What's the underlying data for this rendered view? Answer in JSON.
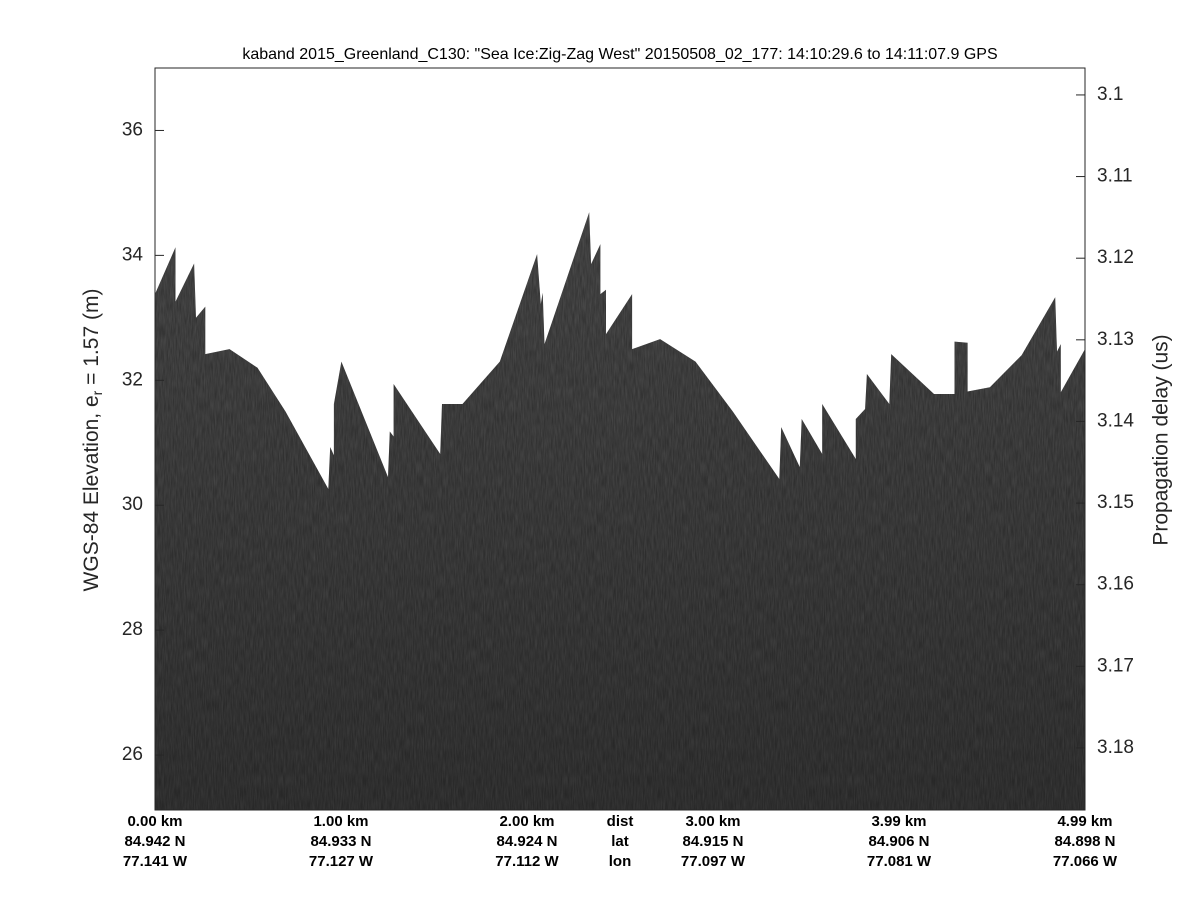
{
  "chart_data": {
    "type": "echogram",
    "title": "kaband 2015_Greenland_C130: \"Sea Ice:Zig-Zag West\"  20150508_02_177: 14:10:29.6 to 14:11:07.9 GPS",
    "ylabel": "WGS-84 Elevation, e",
    "ylabel_sub": "r",
    "ylabel_end": " = 1.57 (m)",
    "y2label": "Propagation delay (us)",
    "xlim": [
      0,
      4.99
    ],
    "ylim": [
      25.12,
      37.0
    ],
    "yticks": [
      26,
      28,
      30,
      32,
      34,
      36
    ],
    "y2lim": [
      3.0967,
      3.1876
    ],
    "y2_reversed": true,
    "y2ticks": [
      3.1,
      3.11,
      3.12,
      3.13,
      3.14,
      3.15,
      3.16,
      3.17,
      3.18
    ],
    "color": "#3b3b3b",
    "x_row_names": [
      "dist",
      "lat",
      "lon"
    ],
    "x_rows": [
      [
        "0.00 km",
        "1.00 km",
        "2.00 km",
        "3.00 km",
        "3.99 km",
        "4.99 km"
      ],
      [
        "84.942 N",
        "84.933 N",
        "84.924 N",
        "84.915 N",
        "84.906 N",
        "84.898 N"
      ],
      [
        "77.141 W",
        "77.127 W",
        "77.112 W",
        "77.097 W",
        "77.081 W",
        "77.066 W"
      ]
    ],
    "surface": {
      "x": [
        0,
        0.11,
        0.11,
        0.21,
        0.22,
        0.27,
        0.27,
        0.4,
        0.55,
        0.7,
        0.93,
        0.94,
        0.96,
        0.96,
        1.0,
        1.25,
        1.26,
        1.28,
        1.28,
        1.53,
        1.54,
        1.65,
        1.85,
        2.05,
        2.07,
        2.08,
        2.09,
        2.33,
        2.34,
        2.39,
        2.39,
        2.42,
        2.42,
        2.56,
        2.56,
        2.71,
        2.9,
        3.1,
        3.35,
        3.36,
        3.46,
        3.47,
        3.58,
        3.58,
        3.76,
        3.76,
        3.81,
        3.82,
        3.94,
        3.95,
        4.18,
        4.29,
        4.29,
        4.36,
        4.36,
        4.48,
        4.65,
        4.83,
        4.84,
        4.86,
        4.86,
        4.99
      ],
      "values": [
        33.38,
        34.13,
        33.26,
        33.87,
        33.0,
        33.18,
        32.42,
        32.5,
        32.2,
        31.5,
        30.26,
        30.93,
        30.8,
        31.62,
        32.3,
        30.45,
        31.18,
        31.1,
        31.94,
        30.82,
        31.62,
        31.62,
        32.3,
        34.02,
        33.22,
        33.4,
        32.58,
        34.69,
        33.86,
        34.18,
        33.38,
        33.45,
        32.74,
        33.38,
        32.5,
        32.66,
        32.3,
        31.5,
        30.42,
        31.25,
        30.61,
        31.38,
        30.82,
        31.62,
        30.74,
        31.38,
        31.54,
        32.1,
        31.62,
        32.42,
        31.78,
        31.78,
        32.62,
        32.6,
        31.82,
        31.89,
        32.4,
        33.33,
        32.46,
        32.58,
        31.81,
        32.5
      ]
    }
  }
}
